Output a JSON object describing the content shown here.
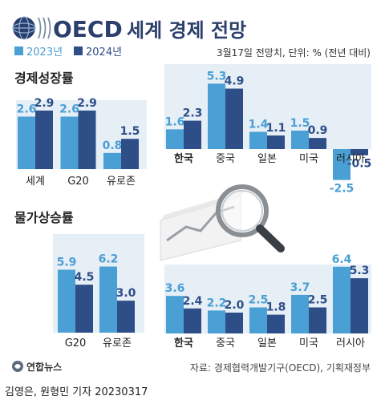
{
  "header": {
    "logo_text": "OECD",
    "title": "세계 경제 전망",
    "note": "3월17일 전망치, 단위: % (전년 대비)"
  },
  "legend": [
    {
      "name": "2023년",
      "color": "#4a9fd4"
    },
    {
      "name": "2024년",
      "color": "#2e4e88"
    }
  ],
  "colors": {
    "y2023": "#4a9fd4",
    "y2024": "#2e4e88",
    "panel": "#e6eef6",
    "text_2023": "#4a9fd4",
    "text_2024": "#2e4e88"
  },
  "chart_data": [
    {
      "type": "bar",
      "title": "경제성장률",
      "group": "left",
      "categories": [
        "세계",
        "G20",
        "유로존"
      ],
      "series": [
        {
          "name": "2023년",
          "values": [
            2.6,
            2.6,
            0.8
          ]
        },
        {
          "name": "2024년",
          "values": [
            2.9,
            2.9,
            1.5
          ]
        }
      ],
      "value_labels": {
        "2023년": [
          "2.6",
          "2.6",
          "0.8"
        ],
        "2024년": [
          "2.9",
          "2.9",
          "1.5"
        ]
      }
    },
    {
      "type": "bar",
      "title": "",
      "group": "right",
      "categories": [
        "한국",
        "중국",
        "일본",
        "미국",
        "러시아"
      ],
      "bold_category": "한국",
      "series": [
        {
          "name": "2023년",
          "values": [
            1.6,
            5.3,
            1.4,
            1.5,
            -2.5
          ]
        },
        {
          "name": "2024년",
          "values": [
            2.3,
            4.9,
            1.1,
            0.9,
            -0.5
          ]
        }
      ],
      "value_labels": {
        "2023년": [
          "1.6",
          "5.3",
          "1.4",
          "1.5",
          "-2.5"
        ],
        "2024년": [
          "2.3",
          "4.9",
          "1.1",
          "0.9",
          "-0.5"
        ]
      }
    },
    {
      "type": "bar",
      "title": "물가상승률",
      "group": "left",
      "categories": [
        "G20",
        "유로존"
      ],
      "series": [
        {
          "name": "2023년",
          "values": [
            5.9,
            6.2
          ]
        },
        {
          "name": "2024년",
          "values": [
            4.5,
            3.0
          ]
        }
      ],
      "value_labels": {
        "2023년": [
          "5.9",
          "6.2"
        ],
        "2024년": [
          "4.5",
          "3.0"
        ]
      }
    },
    {
      "type": "bar",
      "title": "",
      "group": "right",
      "categories": [
        "한국",
        "중국",
        "일본",
        "미국",
        "러시아"
      ],
      "bold_category": "한국",
      "series": [
        {
          "name": "2023년",
          "values": [
            3.6,
            2.2,
            2.5,
            3.7,
            6.4
          ]
        },
        {
          "name": "2024년",
          "values": [
            2.4,
            2.0,
            1.8,
            2.5,
            5.3
          ]
        }
      ],
      "value_labels": {
        "2023년": [
          "3.6",
          "2.2",
          "2.5",
          "3.7",
          "6.4"
        ],
        "2024년": [
          "2.4",
          "2.0",
          "1.8",
          "2.5",
          "5.3"
        ]
      }
    }
  ],
  "source": "자료: 경제협력개발기구(OECD), 기획재정부",
  "agency": "연합뉴스",
  "byline": "김영은, 원형민 기자",
  "date": "20230317"
}
